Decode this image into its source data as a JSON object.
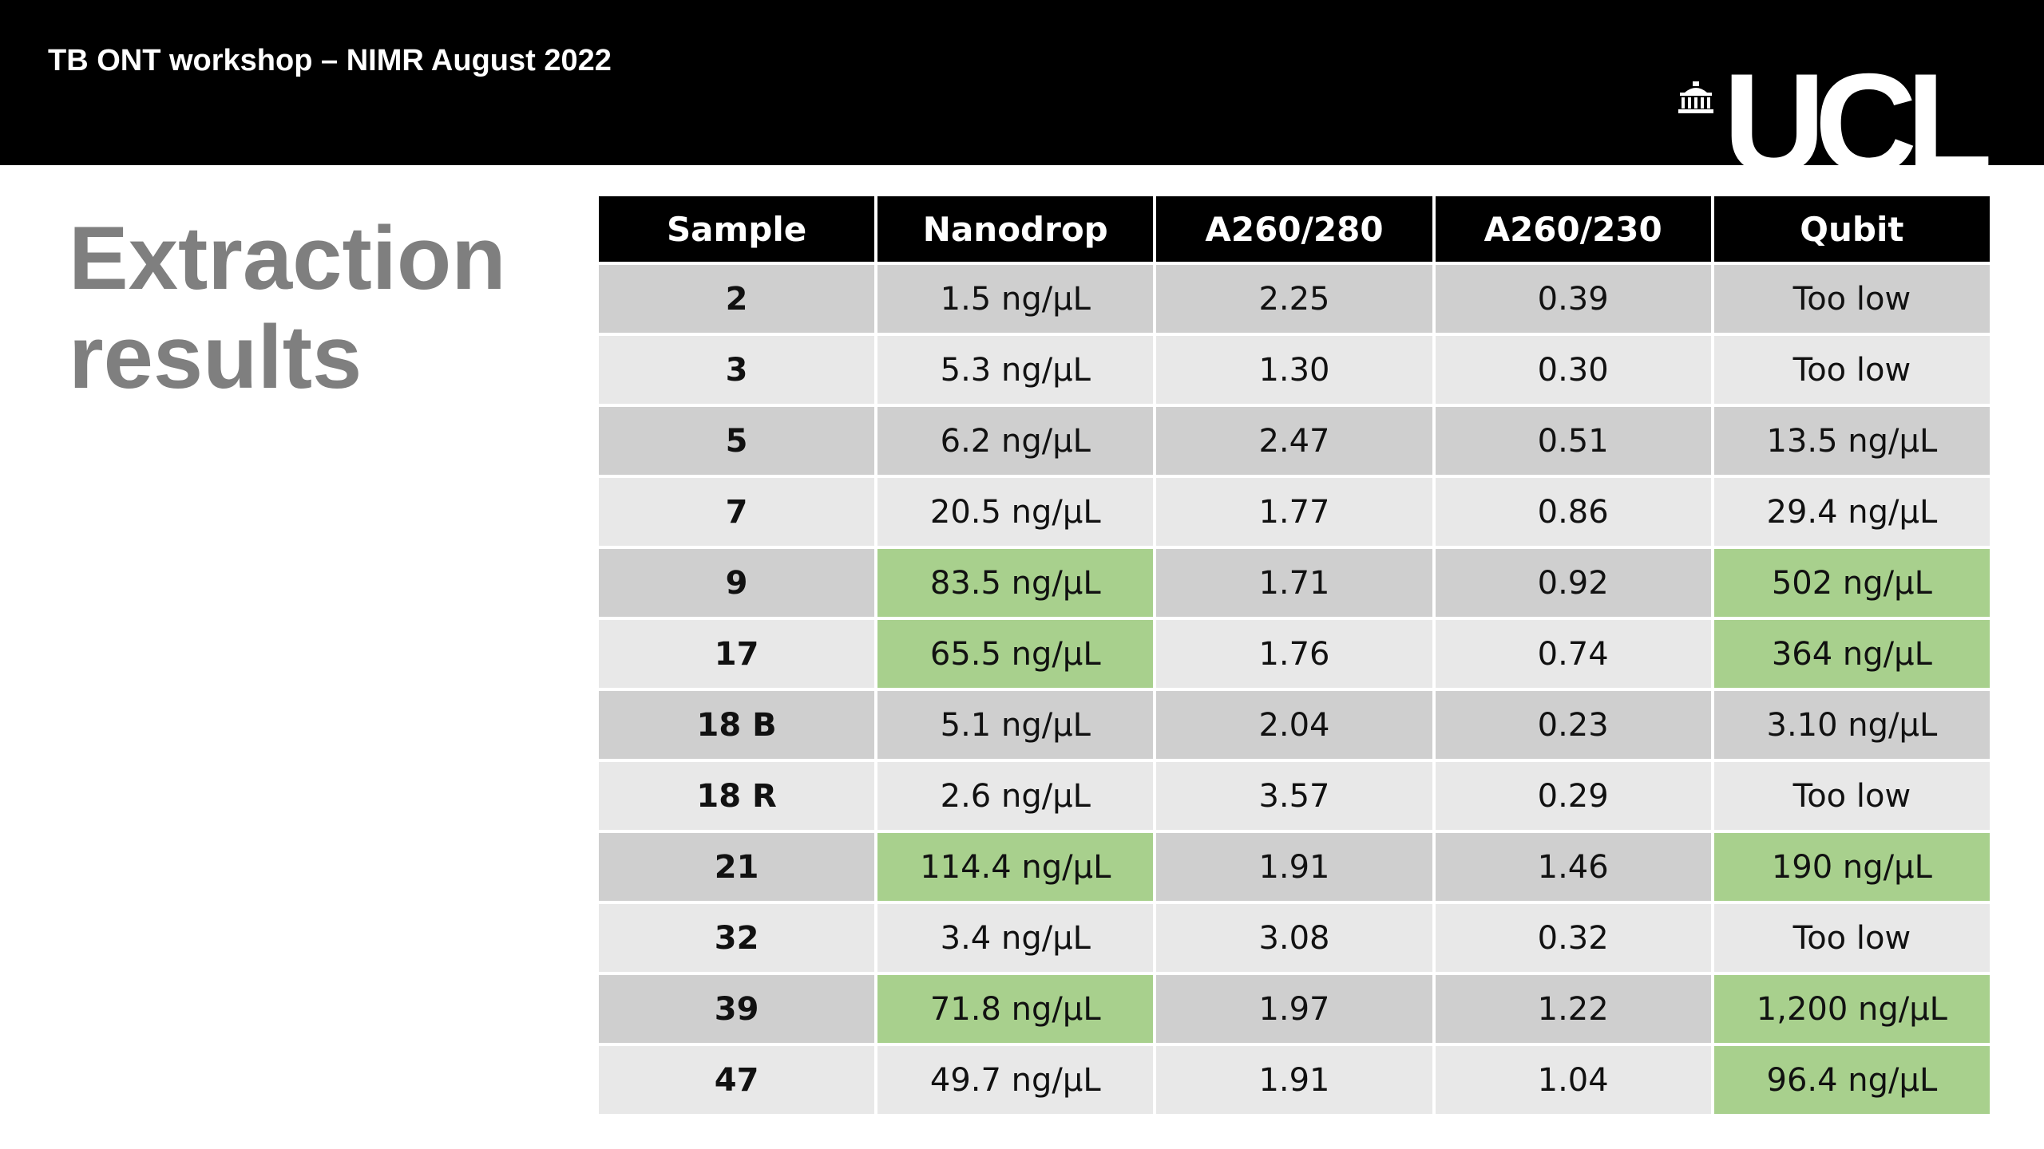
{
  "header": {
    "title": "TB ONT workshop – NIMR August 2022",
    "logo_text": "UCL",
    "background_color": "#000000"
  },
  "slide": {
    "title_line1": "Extraction",
    "title_line2": "results",
    "title_color": "#7f7f7f"
  },
  "table": {
    "columns": [
      "Sample",
      "Nanodrop",
      "A260/280",
      "A260/230",
      "Qubit"
    ],
    "highlight_color": "#a8d08d",
    "rows": [
      {
        "sample": "2",
        "nanodrop": "1.5 ng/µL",
        "a260_280": "2.25",
        "a260_230": "0.39",
        "qubit": "Too low",
        "highlight_nanodrop": false,
        "highlight_qubit": false
      },
      {
        "sample": "3",
        "nanodrop": "5.3 ng/µL",
        "a260_280": "1.30",
        "a260_230": "0.30",
        "qubit": "Too low",
        "highlight_nanodrop": false,
        "highlight_qubit": false
      },
      {
        "sample": "5",
        "nanodrop": "6.2 ng/µL",
        "a260_280": "2.47",
        "a260_230": "0.51",
        "qubit": "13.5 ng/µL",
        "highlight_nanodrop": false,
        "highlight_qubit": false
      },
      {
        "sample": "7",
        "nanodrop": "20.5 ng/µL",
        "a260_280": "1.77",
        "a260_230": "0.86",
        "qubit": "29.4 ng/µL",
        "highlight_nanodrop": false,
        "highlight_qubit": false
      },
      {
        "sample": "9",
        "nanodrop": "83.5 ng/µL",
        "a260_280": "1.71",
        "a260_230": "0.92",
        "qubit": "502 ng/µL",
        "highlight_nanodrop": true,
        "highlight_qubit": true
      },
      {
        "sample": "17",
        "nanodrop": "65.5 ng/µL",
        "a260_280": "1.76",
        "a260_230": "0.74",
        "qubit": "364 ng/µL",
        "highlight_nanodrop": true,
        "highlight_qubit": true
      },
      {
        "sample": "18 B",
        "nanodrop": "5.1 ng/µL",
        "a260_280": "2.04",
        "a260_230": "0.23",
        "qubit": "3.10 ng/µL",
        "highlight_nanodrop": false,
        "highlight_qubit": false
      },
      {
        "sample": "18 R",
        "nanodrop": "2.6 ng/µL",
        "a260_280": "3.57",
        "a260_230": "0.29",
        "qubit": "Too low",
        "highlight_nanodrop": false,
        "highlight_qubit": false
      },
      {
        "sample": "21",
        "nanodrop": "114.4 ng/µL",
        "a260_280": "1.91",
        "a260_230": "1.46",
        "qubit": "190 ng/µL",
        "highlight_nanodrop": true,
        "highlight_qubit": true
      },
      {
        "sample": "32",
        "nanodrop": "3.4 ng/µL",
        "a260_280": "3.08",
        "a260_230": "0.32",
        "qubit": "Too low",
        "highlight_nanodrop": false,
        "highlight_qubit": false
      },
      {
        "sample": "39",
        "nanodrop": "71.8 ng/µL",
        "a260_280": "1.97",
        "a260_230": "1.22",
        "qubit": "1,200 ng/µL",
        "highlight_nanodrop": true,
        "highlight_qubit": true
      },
      {
        "sample": "47",
        "nanodrop": "49.7 ng/µL",
        "a260_280": "1.91",
        "a260_230": "1.04",
        "qubit": "96.4 ng/µL",
        "highlight_nanodrop": false,
        "highlight_qubit": true
      }
    ]
  }
}
